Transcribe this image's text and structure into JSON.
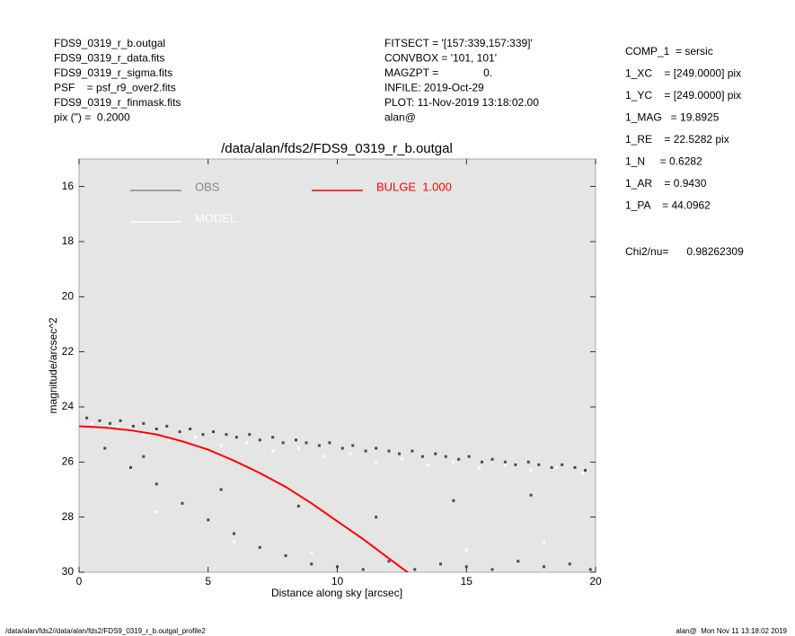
{
  "header": {
    "left": [
      "FDS9_0319_r_b.outgal",
      "FDS9_0319_r_data.fits",
      "FDS9_0319_r_sigma.fits",
      "PSF    = psf_r9_over2.fits",
      "FDS9_0319_r_finmask.fits",
      "pix (\") =  0.2000"
    ],
    "middle": [
      "FITSECT = '[157:339,157:339]'",
      "CONVBOX = '101, 101'",
      "MAGZPT =               0.",
      "INFILE: 2019-Oct-29",
      "PLOT: 11-Nov-2019 13:18:02.00",
      "alan@"
    ],
    "right": [
      "COMP_1  = sersic",
      "1_XC    = [249.0000] pix",
      "1_YC    = [249.0000] pix",
      "1_MAG   = 19.8925",
      "1_RE    = 22.5282 pix",
      "1_N     = 0.6282",
      "1_AR    = 0.9430",
      "1_PA    = 44.0962"
    ],
    "chi2": "Chi2/nu=      0.98262309"
  },
  "footer": {
    "left": "/data/alan/fds2//data/alan/fds2/FDS9_0319_r_b.outgal_profile2",
    "right": "alan@  Mon Nov 11 13:18:02 2019"
  },
  "chart_data": {
    "type": "scatter",
    "title": "/data/alan/fds2/FDS9_0319_r_b.outgal",
    "x_label": "Distance along sky [arcsec]",
    "y_label": "magnitude/arcsec^2",
    "xlim": [
      0,
      20
    ],
    "ylim": [
      15,
      30
    ],
    "y_inverted": true,
    "xticks": [
      0,
      5,
      10,
      15,
      20
    ],
    "yticks": [
      16,
      18,
      20,
      22,
      24,
      26,
      28,
      30
    ],
    "background": "#e5e5e5",
    "series": [
      {
        "name": "OBS",
        "color": "#4a4a4a",
        "legend_color": "#888888",
        "style": "points",
        "x": [
          0.3,
          0.8,
          1.2,
          1.6,
          2.1,
          2.5,
          3.0,
          3.4,
          3.9,
          4.3,
          4.8,
          5.2,
          5.7,
          6.1,
          6.6,
          7.0,
          7.5,
          7.9,
          8.4,
          8.8,
          9.3,
          9.7,
          10.2,
          10.6,
          11.1,
          11.5,
          12.0,
          12.4,
          12.9,
          13.3,
          13.8,
          14.2,
          14.7,
          15.1,
          15.6,
          16.0,
          16.5,
          16.9,
          17.4,
          17.8,
          18.3,
          18.7,
          19.2,
          19.6,
          1.0,
          2.0,
          3.0,
          4.0,
          5.0,
          6.0,
          7.0,
          8.0,
          9.0,
          10.0,
          11.0,
          12.0,
          13.0,
          14.0,
          15.0,
          16.0,
          17.0,
          18.0,
          19.0,
          19.8,
          2.5,
          5.5,
          8.5,
          11.5,
          14.5,
          17.5
        ],
        "y": [
          24.4,
          24.5,
          24.6,
          24.5,
          24.7,
          24.6,
          24.8,
          24.7,
          24.9,
          24.8,
          25.0,
          24.9,
          25.0,
          25.1,
          25.0,
          25.2,
          25.1,
          25.3,
          25.2,
          25.3,
          25.4,
          25.3,
          25.5,
          25.4,
          25.6,
          25.5,
          25.6,
          25.7,
          25.6,
          25.8,
          25.7,
          25.8,
          25.9,
          25.8,
          26.0,
          25.9,
          26.0,
          26.1,
          26.0,
          26.1,
          26.2,
          26.1,
          26.2,
          26.3,
          25.5,
          26.2,
          26.8,
          27.5,
          28.1,
          28.6,
          29.1,
          29.4,
          29.7,
          29.8,
          29.9,
          29.6,
          29.9,
          29.7,
          29.8,
          29.9,
          29.6,
          29.8,
          29.7,
          29.9,
          25.8,
          27.0,
          27.6,
          28.0,
          27.4,
          27.2
        ]
      },
      {
        "name": "MODEL",
        "color": "#ffffff",
        "legend_color": "#ffffff",
        "style": "points",
        "x": [
          0.5,
          1.5,
          2.5,
          3.5,
          4.5,
          5.5,
          6.5,
          7.5,
          8.5,
          9.5,
          10.5,
          11.5,
          12.5,
          13.5,
          14.5,
          15.5,
          16.5,
          17.5,
          18.5,
          19.5,
          3,
          6,
          9,
          12,
          15,
          18
        ],
        "y": [
          24.6,
          24.7,
          25.0,
          25.2,
          25.1,
          25.4,
          25.3,
          25.6,
          25.5,
          25.8,
          25.7,
          26.0,
          25.9,
          26.1,
          26.0,
          26.2,
          26.1,
          26.3,
          26.2,
          26.4,
          27.8,
          28.9,
          29.3,
          29.5,
          29.2,
          28.9
        ]
      },
      {
        "name": "BULGE  1.000",
        "color": "#ff0000",
        "legend_color": "#ff0000",
        "style": "line",
        "x": [
          0,
          1,
          2,
          3,
          4,
          5,
          6,
          7,
          8,
          9,
          10,
          11,
          12,
          13
        ],
        "y": [
          24.7,
          24.75,
          24.85,
          25.0,
          25.25,
          25.55,
          25.95,
          26.4,
          26.9,
          27.5,
          28.15,
          28.8,
          29.5,
          30.2
        ]
      }
    ]
  }
}
